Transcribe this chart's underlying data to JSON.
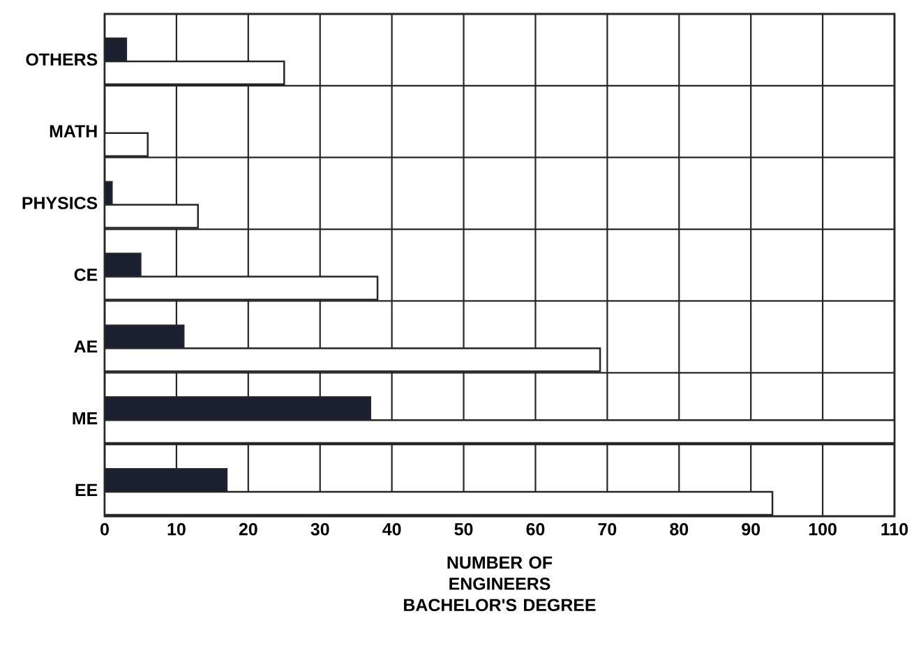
{
  "chart_data": {
    "type": "bar",
    "orientation": "horizontal",
    "xlabel": "NUMBER OF ENGINEERS BACHELOR'S DEGREE",
    "categories": [
      "OTHERS",
      "MATH",
      "PHYSICS",
      "CE",
      "AE",
      "ME",
      "EE"
    ],
    "series": [
      {
        "color": "#1b2030",
        "values": [
          3,
          null,
          1,
          5,
          11,
          37,
          17
        ]
      },
      {
        "color": "#ffffff",
        "values": [
          25,
          6,
          13,
          38,
          69,
          110,
          93
        ]
      }
    ],
    "xlim": [
      0,
      110
    ],
    "xticks": [
      0,
      10,
      20,
      30,
      40,
      50,
      60,
      70,
      80,
      90,
      100,
      110
    ],
    "grid": true
  }
}
